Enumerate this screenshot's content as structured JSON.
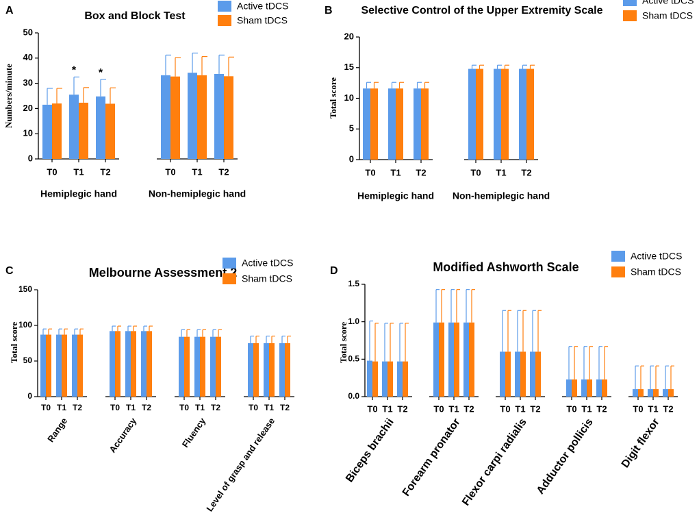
{
  "colors": {
    "active": "#5B9BEA",
    "sham": "#FF7F0E",
    "axis": "#000000"
  },
  "legend": {
    "active_label": "Active tDCS",
    "sham_label": "Sham tDCS"
  },
  "chart_data": [
    {
      "id": "A",
      "panel_letter": "A",
      "type": "bar",
      "title": "Box and Block Test",
      "ylabel": "Numbers/minute",
      "ylim": [
        0,
        50
      ],
      "yticks": [
        0,
        10,
        20,
        30,
        40,
        50
      ],
      "categories": [
        "T0",
        "T1",
        "T2",
        "T0",
        "T1",
        "T2"
      ],
      "groups": [
        {
          "label": "Hemiplegic hand",
          "indices": [
            0,
            1,
            2
          ]
        },
        {
          "label": "Non-hemiplegic hand",
          "indices": [
            3,
            4,
            5
          ]
        }
      ],
      "series": [
        {
          "name": "Active tDCS",
          "values": [
            21.5,
            25.5,
            24.8,
            33.2,
            34.2,
            33.7
          ],
          "errors": [
            6.5,
            7.0,
            6.8,
            8.0,
            7.8,
            7.5
          ]
        },
        {
          "name": "Sham tDCS",
          "values": [
            22.0,
            22.3,
            21.9,
            32.7,
            33.2,
            32.8
          ],
          "errors": [
            6.0,
            6.0,
            6.3,
            7.5,
            7.4,
            7.6
          ]
        }
      ],
      "annotations": [
        {
          "index": 1,
          "text": "*"
        },
        {
          "index": 2,
          "text": "*"
        }
      ]
    },
    {
      "id": "B",
      "panel_letter": "B",
      "type": "bar",
      "title": "Selective Control of the Upper Extremity Scale",
      "ylabel": "Total score",
      "ylim": [
        0,
        20
      ],
      "yticks": [
        0,
        5,
        10,
        15,
        20
      ],
      "categories": [
        "T0",
        "T1",
        "T2",
        "T0",
        "T1",
        "T2"
      ],
      "groups": [
        {
          "label": "Hemiplegic hand",
          "indices": [
            0,
            1,
            2
          ]
        },
        {
          "label": "Non-hemiplegic hand",
          "indices": [
            3,
            4,
            5
          ]
        }
      ],
      "series": [
        {
          "name": "Active tDCS",
          "values": [
            11.6,
            11.6,
            11.6,
            14.8,
            14.8,
            14.8
          ],
          "errors": [
            1.0,
            1.0,
            1.0,
            0.6,
            0.6,
            0.6
          ]
        },
        {
          "name": "Sham tDCS",
          "values": [
            11.6,
            11.6,
            11.6,
            14.8,
            14.8,
            14.8
          ],
          "errors": [
            1.0,
            1.0,
            1.0,
            0.6,
            0.6,
            0.6
          ]
        }
      ],
      "annotations": []
    },
    {
      "id": "C",
      "panel_letter": "C",
      "type": "bar",
      "title": "Melbourne Assessment 2",
      "ylabel": "Total score",
      "ylim": [
        0,
        150
      ],
      "yticks": [
        0,
        50,
        100,
        150
      ],
      "categories": [
        "T0",
        "T1",
        "T2",
        "T0",
        "T1",
        "T2",
        "T0",
        "T1",
        "T2",
        "T0",
        "T1",
        "T2"
      ],
      "groups": [
        {
          "label": "Range",
          "indices": [
            0,
            1,
            2
          ]
        },
        {
          "label": "Accuracy",
          "indices": [
            3,
            4,
            5
          ]
        },
        {
          "label": "Fluency",
          "indices": [
            6,
            7,
            8
          ]
        },
        {
          "label": "Level of grasp and release",
          "indices": [
            9,
            10,
            11
          ]
        }
      ],
      "series": [
        {
          "name": "Active tDCS",
          "values": [
            87,
            87,
            87,
            92,
            92,
            92,
            84,
            84,
            84,
            75,
            75,
            75
          ],
          "errors": [
            8,
            8,
            8,
            7,
            7,
            7,
            10,
            10,
            10,
            10,
            10,
            10
          ]
        },
        {
          "name": "Sham tDCS",
          "values": [
            87,
            87,
            87,
            92,
            92,
            92,
            84,
            84,
            84,
            75,
            75,
            75
          ],
          "errors": [
            8,
            8,
            8,
            7,
            7,
            7,
            10,
            10,
            10,
            10,
            10,
            10
          ]
        }
      ],
      "annotations": []
    },
    {
      "id": "D",
      "panel_letter": "D",
      "type": "bar",
      "title": "Modified Ashworth Scale",
      "ylabel": "Total score",
      "ylim": [
        0,
        1.5
      ],
      "yticks": [
        0.0,
        0.5,
        1.0,
        1.5
      ],
      "ytick_labels": [
        "0.0",
        "0.5",
        "1.0",
        "1.5"
      ],
      "categories": [
        "T0",
        "T1",
        "T2",
        "T0",
        "T1",
        "T2",
        "T0",
        "T1",
        "T2",
        "T0",
        "T1",
        "T2",
        "T0",
        "T1",
        "T2"
      ],
      "groups": [
        {
          "label": "Biceps brachii",
          "indices": [
            0,
            1,
            2
          ]
        },
        {
          "label": "Forearm pronator",
          "indices": [
            3,
            4,
            5
          ]
        },
        {
          "label": "Flexor carpi radialis",
          "indices": [
            6,
            7,
            8
          ]
        },
        {
          "label": "Adductor pollicis",
          "indices": [
            9,
            10,
            11
          ]
        },
        {
          "label": "Digit flexor",
          "indices": [
            12,
            13,
            14
          ]
        }
      ],
      "series": [
        {
          "name": "Active tDCS",
          "values": [
            0.48,
            0.47,
            0.47,
            0.99,
            0.99,
            0.99,
            0.6,
            0.6,
            0.6,
            0.23,
            0.23,
            0.23,
            0.1,
            0.1,
            0.1
          ],
          "errors": [
            0.53,
            0.51,
            0.51,
            0.44,
            0.44,
            0.44,
            0.55,
            0.55,
            0.55,
            0.44,
            0.44,
            0.44,
            0.31,
            0.31,
            0.31
          ]
        },
        {
          "name": "Sham tDCS",
          "values": [
            0.47,
            0.47,
            0.47,
            0.99,
            0.99,
            0.99,
            0.6,
            0.6,
            0.6,
            0.23,
            0.23,
            0.23,
            0.1,
            0.1,
            0.1
          ],
          "errors": [
            0.51,
            0.51,
            0.51,
            0.44,
            0.44,
            0.44,
            0.55,
            0.55,
            0.55,
            0.44,
            0.44,
            0.44,
            0.31,
            0.31,
            0.31
          ]
        }
      ],
      "annotations": []
    }
  ]
}
